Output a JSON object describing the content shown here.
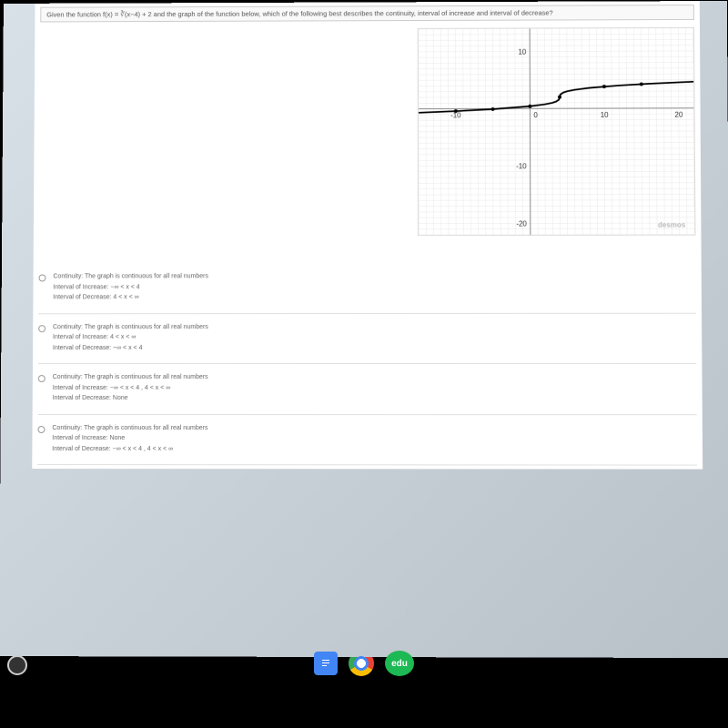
{
  "question": "Given the function f(x) = ∛(x−4) + 2 and the graph of the function below, which of the following best describes the continuity, interval of increase and interval of decrease?",
  "graph": {
    "background_color": "#ffffff",
    "grid_color": "#e8e8e8",
    "axis_color": "#888888",
    "curve_color": "#000000",
    "xlim": [
      -15,
      22
    ],
    "ylim": [
      -22,
      14
    ],
    "xticks": [
      -10,
      0,
      10,
      20
    ],
    "yticks": [
      -20,
      -10,
      10
    ],
    "watermark": "desmos",
    "curve_points": [
      [
        -15,
        -0.66
      ],
      [
        -10,
        -0.41
      ],
      [
        -5,
        -0.08
      ],
      [
        0,
        0.41
      ],
      [
        2,
        0.74
      ],
      [
        3,
        1.0
      ],
      [
        3.5,
        1.21
      ],
      [
        3.9,
        1.54
      ],
      [
        4,
        2.0
      ],
      [
        4.1,
        2.46
      ],
      [
        4.5,
        2.79
      ],
      [
        5,
        3.0
      ],
      [
        6,
        3.26
      ],
      [
        8,
        3.59
      ],
      [
        12,
        4.0
      ],
      [
        16,
        4.29
      ],
      [
        22,
        4.62
      ]
    ],
    "dots": [
      [
        -10,
        -0.41
      ],
      [
        -5,
        -0.08
      ],
      [
        0,
        0.41
      ],
      [
        4,
        2.0
      ],
      [
        10,
        3.82
      ],
      [
        15,
        4.22
      ]
    ]
  },
  "options": [
    {
      "continuity": "Continuity: The graph is continuous for all real numbers",
      "increase": "Interval of Increase: −∞ < x < 4",
      "decrease": "Interval of Decrease: 4 < x < ∞"
    },
    {
      "continuity": "Continuity: The graph is continuous for all real numbers",
      "increase": "Interval of Increase: 4 < x < ∞",
      "decrease": "Interval of Decrease: −∞ < x < 4"
    },
    {
      "continuity": "Continuity: The graph is continuous for all real numbers",
      "increase": "Interval of Increase: −∞ < x < 4 , 4 < x < ∞",
      "decrease": "Interval of Decrease: None"
    },
    {
      "continuity": "Continuity: The graph is continuous for all real numbers",
      "increase": "Interval of Increase: None",
      "decrease": "Interval of Decrease: −∞ < x < 4 , 4 < x < ∞"
    }
  ],
  "taskbar": {
    "edu_label": "edu"
  }
}
